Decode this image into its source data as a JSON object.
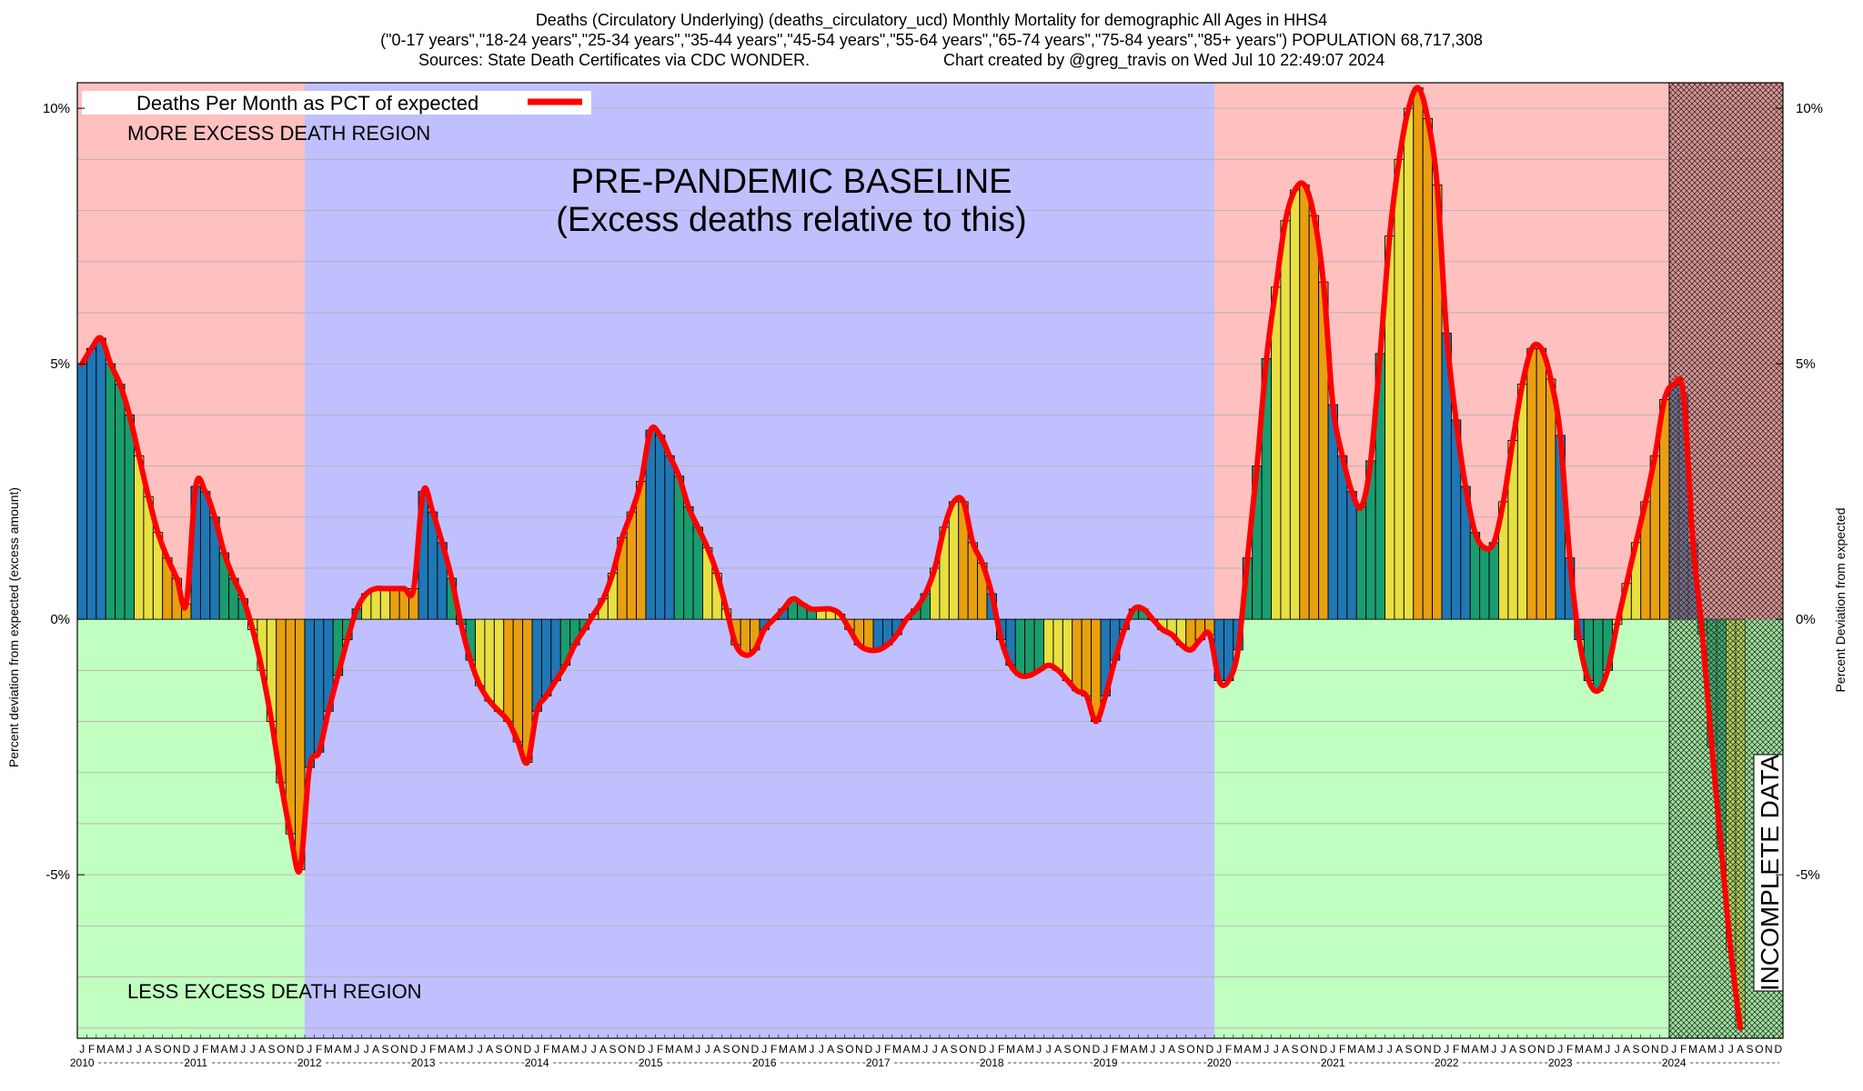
{
  "header": {
    "line1": "Deaths (Circulatory Underlying) (deaths_circulatory_ucd) Monthly Mortality for demographic All Ages in HHS4",
    "line2": "(\"0-17 years\",\"18-24 years\",\"25-34 years\",\"35-44 years\",\"45-54 years\",\"55-64 years\",\"65-74 years\",\"75-84 years\",\"85+ years\") POPULATION 68,717,308",
    "line3_left": "Sources: State Death Certificates via CDC WONDER.",
    "line3_right": "Chart created by @greg_travis on Wed Jul 10 22:49:07 2024"
  },
  "legend": {
    "label": "Deaths Per Month as PCT of expected"
  },
  "regions": {
    "more_excess": "MORE EXCESS DEATH REGION",
    "less_excess": "LESS EXCESS DEATH REGION",
    "baseline_title": "PRE-PANDEMIC BASELINE",
    "baseline_subtitle": "(Excess deaths relative to this)",
    "incomplete": "INCOMPLETE DATA"
  },
  "colors": {
    "more_region": "#ffc0c0",
    "less_region": "#c0ffc0",
    "baseline_region": "#c0c0ff",
    "line": "#ff0000",
    "bar_palette": [
      "#1f77b4",
      "#1f77b4",
      "#1f77b4",
      "#1a9d6e",
      "#1a9d6e",
      "#1a9d6e",
      "#e8e040",
      "#e8e040",
      "#e8e040",
      "#e8a010",
      "#e8a010",
      "#e8a010"
    ]
  },
  "chart_data": {
    "type": "bar",
    "title": "Deaths (Circulatory Underlying) (deaths_circulatory_ucd) Monthly Mortality for demographic All Ages in HHS4",
    "ylabel": "Percent deviation from expected (excess amount)",
    "y2label": "Percent Deviation from expected",
    "ylim": [
      -8.2,
      10.5
    ],
    "yticks": [
      {
        "value": 10,
        "label": "10%"
      },
      {
        "value": 5,
        "label": "5%"
      },
      {
        "value": 0,
        "label": "0%"
      },
      {
        "value": -5,
        "label": "-5%"
      }
    ],
    "month_letters": [
      "J",
      "F",
      "M",
      "A",
      "M",
      "J",
      "J",
      "A",
      "S",
      "O",
      "N",
      "D"
    ],
    "years": [
      "2010",
      "2011",
      "2012",
      "2013",
      "2014",
      "2015",
      "2016",
      "2017",
      "2018",
      "2019",
      "2020",
      "2021",
      "2022",
      "2023",
      "2024"
    ],
    "start": "2010-01",
    "baseline_period": [
      "2012-01",
      "2019-12"
    ],
    "incomplete_from": "2024-01",
    "series": [
      {
        "name": "Deaths Per Month as PCT of expected",
        "values": [
          5.0,
          5.3,
          5.5,
          5.0,
          4.6,
          4.0,
          3.2,
          2.4,
          1.7,
          1.2,
          0.8,
          0.3,
          2.6,
          2.5,
          2.0,
          1.3,
          0.8,
          0.4,
          -0.2,
          -1.0,
          -2.0,
          -3.2,
          -4.2,
          -4.9,
          -2.9,
          -2.6,
          -1.8,
          -1.1,
          -0.4,
          0.2,
          0.5,
          0.6,
          0.6,
          0.6,
          0.6,
          0.6,
          2.5,
          2.1,
          1.5,
          0.8,
          -0.1,
          -0.8,
          -1.3,
          -1.6,
          -1.8,
          -2.0,
          -2.4,
          -2.8,
          -1.8,
          -1.5,
          -1.2,
          -0.9,
          -0.5,
          -0.2,
          0.1,
          0.4,
          0.9,
          1.6,
          2.1,
          2.7,
          3.7,
          3.6,
          3.2,
          2.8,
          2.2,
          1.8,
          1.4,
          0.9,
          0.2,
          -0.5,
          -0.7,
          -0.6,
          -0.2,
          0.0,
          0.2,
          0.4,
          0.3,
          0.2,
          0.2,
          0.2,
          0.1,
          -0.2,
          -0.5,
          -0.6,
          -0.6,
          -0.5,
          -0.3,
          0.0,
          0.2,
          0.5,
          1.0,
          1.8,
          2.3,
          2.3,
          1.5,
          1.1,
          0.5,
          -0.4,
          -0.9,
          -1.1,
          -1.1,
          -1.0,
          -0.9,
          -1.0,
          -1.2,
          -1.4,
          -1.5,
          -2.0,
          -1.5,
          -0.8,
          -0.2,
          0.2,
          0.2,
          0.0,
          -0.2,
          -0.3,
          -0.5,
          -0.6,
          -0.4,
          -0.3,
          -1.2,
          -1.2,
          -0.6,
          1.2,
          3.0,
          5.1,
          6.5,
          7.8,
          8.4,
          8.5,
          7.9,
          6.6,
          4.2,
          3.2,
          2.5,
          2.2,
          3.1,
          5.2,
          7.5,
          9.0,
          10.0,
          10.4,
          9.8,
          8.5,
          5.6,
          3.9,
          2.6,
          1.7,
          1.4,
          1.5,
          2.3,
          3.5,
          4.6,
          5.3,
          5.3,
          4.7,
          3.6,
          1.2,
          -0.4,
          -1.2,
          -1.4,
          -1.0,
          -0.1,
          0.7,
          1.5,
          2.3,
          3.2,
          4.3,
          4.6,
          4.4,
          1.5,
          -0.3,
          -2.5,
          -4.5,
          -6.5,
          -8.0
        ]
      }
    ]
  }
}
